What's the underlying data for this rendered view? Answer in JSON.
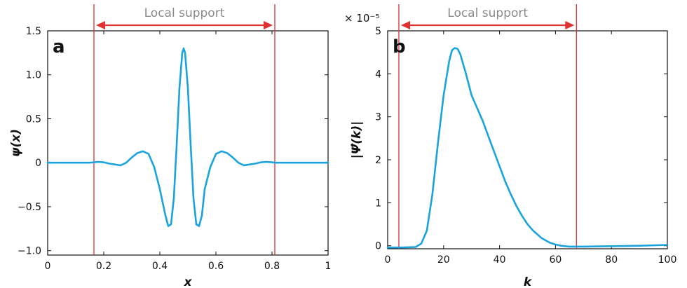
{
  "colors": {
    "curve": "#1aa3dc",
    "support": "#e03030",
    "axis": "#111111",
    "support_text": "#8a8a8a"
  },
  "chart_data": [
    {
      "type": "line",
      "panel_label": "a",
      "title": "",
      "xlabel": "x",
      "ylabel": "ψ(x)",
      "annotation": "Local support",
      "xlim": [
        0,
        1
      ],
      "ylim": [
        -1.05,
        1.5
      ],
      "xticks": [
        0,
        0.2,
        0.4,
        0.6,
        0.8,
        1
      ],
      "xtick_labels": [
        "0",
        "0.2",
        "0.4",
        "0.6",
        "0.8",
        "1"
      ],
      "yticks": [
        -1.0,
        -0.5,
        0,
        0.5,
        1.0,
        1.5
      ],
      "ytick_labels": [
        "−1.0",
        "−0.5",
        "0",
        "0.5",
        "1.0",
        "1.5"
      ],
      "support_lines": [
        0.165,
        0.81
      ],
      "series": [
        {
          "x": [
            0,
            0.05,
            0.1,
            0.15,
            0.165,
            0.18,
            0.2,
            0.22,
            0.24,
            0.26,
            0.28,
            0.3,
            0.32,
            0.34,
            0.36,
            0.38,
            0.4,
            0.42,
            0.43,
            0.44,
            0.45,
            0.46,
            0.47,
            0.48,
            0.485,
            0.49,
            0.5,
            0.51,
            0.52,
            0.53,
            0.54,
            0.55,
            0.56,
            0.58,
            0.6,
            0.62,
            0.64,
            0.66,
            0.68,
            0.7,
            0.72,
            0.74,
            0.76,
            0.78,
            0.8,
            0.81,
            0.85,
            0.9,
            0.95,
            1
          ],
          "y": [
            0,
            0,
            0,
            0,
            0.005,
            0.01,
            0.005,
            -0.01,
            -0.02,
            -0.03,
            0,
            0.06,
            0.11,
            0.13,
            0.1,
            -0.05,
            -0.3,
            -0.6,
            -0.72,
            -0.7,
            -0.4,
            0.2,
            0.85,
            1.25,
            1.3,
            1.25,
            0.85,
            0.2,
            -0.4,
            -0.7,
            -0.72,
            -0.6,
            -0.3,
            -0.05,
            0.1,
            0.13,
            0.11,
            0.06,
            0,
            -0.03,
            -0.02,
            -0.01,
            0.005,
            0.01,
            0.005,
            0,
            0,
            0,
            0,
            0
          ]
        }
      ]
    },
    {
      "type": "line",
      "panel_label": "b",
      "title": "",
      "xlabel": "k",
      "ylabel": "|Ψ̂(k)|",
      "annotation": "Local support",
      "scale_label": "× 10⁻⁵",
      "xlim": [
        0,
        100
      ],
      "ylim": [
        -0.07,
        5
      ],
      "xticks": [
        0,
        20,
        40,
        60,
        80,
        100
      ],
      "xtick_labels": [
        "0",
        "20",
        "40",
        "60",
        "80",
        "100"
      ],
      "yticks": [
        0,
        1,
        2,
        3,
        4,
        5
      ],
      "ytick_labels": [
        "0",
        "1",
        "2",
        "3",
        "4",
        "5"
      ],
      "support_lines": [
        4,
        67.5
      ],
      "series": [
        {
          "x": [
            0,
            5,
            10,
            12,
            14,
            16,
            18,
            20,
            22,
            23,
            24,
            25,
            26,
            28,
            30,
            32,
            34,
            36,
            38,
            40,
            42,
            44,
            46,
            48,
            50,
            52,
            55,
            58,
            60,
            62,
            65,
            70,
            80,
            90,
            100
          ],
          "y": [
            -0.04,
            -0.04,
            -0.03,
            0.05,
            0.35,
            1.2,
            2.4,
            3.5,
            4.3,
            4.55,
            4.6,
            4.58,
            4.45,
            4.0,
            3.5,
            3.2,
            2.9,
            2.55,
            2.2,
            1.85,
            1.5,
            1.2,
            0.93,
            0.7,
            0.5,
            0.35,
            0.18,
            0.07,
            0.03,
            0.0,
            -0.02,
            -0.02,
            -0.01,
            0.0,
            0.02
          ]
        }
      ]
    }
  ]
}
